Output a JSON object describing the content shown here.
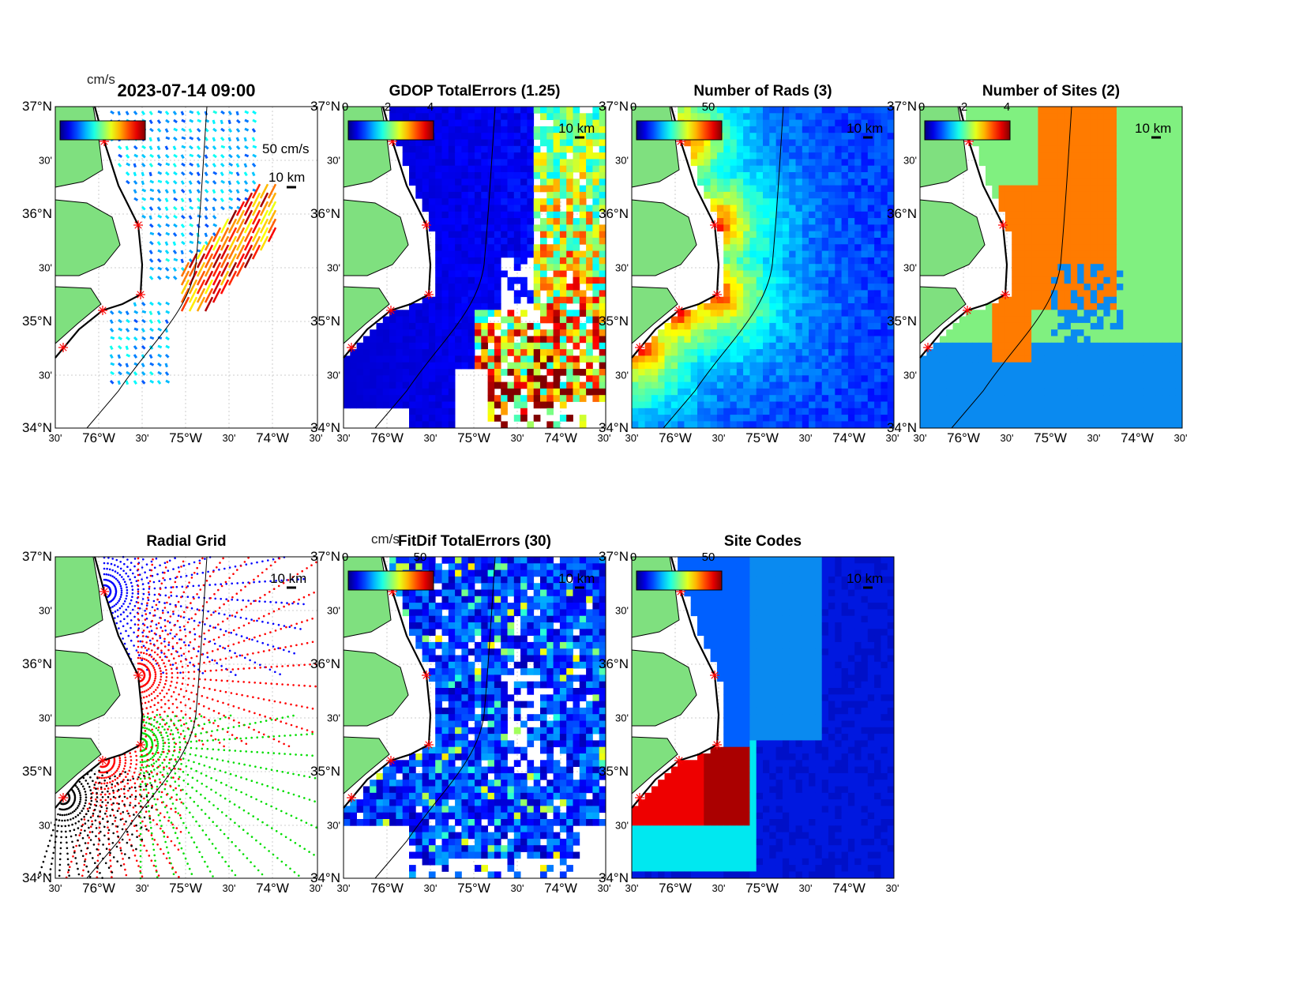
{
  "axes": {
    "lat_labels": [
      "37°N",
      "30'",
      "36°N",
      "30'",
      "35°N",
      "30'",
      "34°N"
    ],
    "lon_labels": [
      "30'",
      "76°W",
      "30'",
      "75°W",
      "30'",
      "74°W",
      "30'"
    ]
  },
  "panels": [
    {
      "key": "vectors",
      "title": "2023-07-14 09:00",
      "unit": "cm/s",
      "cbar_ticks": [],
      "scale_vector": "50 cm/s",
      "scale_distance": "10 km",
      "contour": "100"
    },
    {
      "key": "gdop",
      "title": "GDOP TotalErrors (1.25)",
      "unit": "",
      "cbar_ticks": [
        "0",
        "2",
        "4"
      ],
      "scale_distance": "10 km",
      "contour": "1.25"
    },
    {
      "key": "rads",
      "title": "Number of Rads (3)",
      "unit": "",
      "cbar_ticks": [
        "0",
        "50"
      ],
      "scale_distance": "10 km",
      "contour": "3"
    },
    {
      "key": "sites",
      "title": "Number of Sites (2)",
      "unit": "",
      "cbar_ticks": [
        "0",
        "2",
        "4"
      ],
      "scale_distance": "10 km",
      "contour": "2"
    },
    {
      "key": "radial",
      "title": "Radial Grid",
      "unit": "",
      "cbar_ticks": [],
      "scale_distance": "10 km",
      "contour": "100"
    },
    {
      "key": "fitdif",
      "title": "FitDif TotalErrors (30)",
      "unit": "cm/s",
      "cbar_ticks": [
        "0",
        "50"
      ],
      "scale_distance": "10 km",
      "contour": "30"
    },
    {
      "key": "codes",
      "title": "Site Codes",
      "unit": "",
      "cbar_ticks": [
        "0",
        "50"
      ],
      "scale_distance": "10 km",
      "contour": ""
    }
  ],
  "colors": {
    "land": "#7fe07f",
    "station": "#ff0000",
    "grid": "#cccccc"
  }
}
